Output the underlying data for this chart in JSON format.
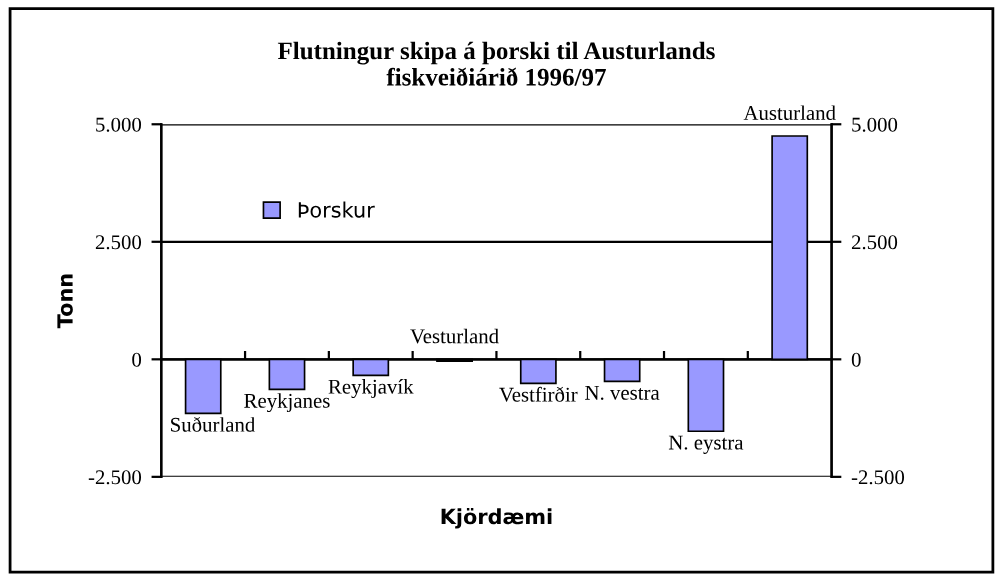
{
  "chart_data": {
    "type": "bar",
    "title": "Flutningur skipa á þorski til Austurlands\nfiskveiðiárið 1996/97",
    "xlabel": "Kjördæmi",
    "ylabel": "Tonn",
    "categories": [
      "Suðurland",
      "Reykjanes",
      "Reykjavík",
      "Vesturland",
      "Vestfirðir",
      "N. vestra",
      "N. eystra",
      "Austurland"
    ],
    "series": [
      {
        "name": "Þorskur",
        "color": "#9999ff",
        "values": [
          -1150,
          -640,
          -340,
          -40,
          -510,
          -470,
          -1530,
          4750
        ]
      }
    ],
    "ylim": [
      -2500,
      5000
    ],
    "yticks": [
      {
        "value": -2500,
        "label": "-2.500"
      },
      {
        "value": 0,
        "label": "0"
      },
      {
        "value": 2500,
        "label": "2.500"
      },
      {
        "value": 5000,
        "label": "5.000"
      }
    ],
    "y2lim": [
      -2500,
      5000
    ],
    "y2ticks": [
      {
        "value": -2500,
        "label": "-2.500"
      },
      {
        "value": 0,
        "label": "0"
      },
      {
        "value": 2500,
        "label": "2.500"
      },
      {
        "value": 5000,
        "label": "5.000"
      }
    ],
    "grid": "y",
    "legend": "top left",
    "tick_labels": "y"
  }
}
